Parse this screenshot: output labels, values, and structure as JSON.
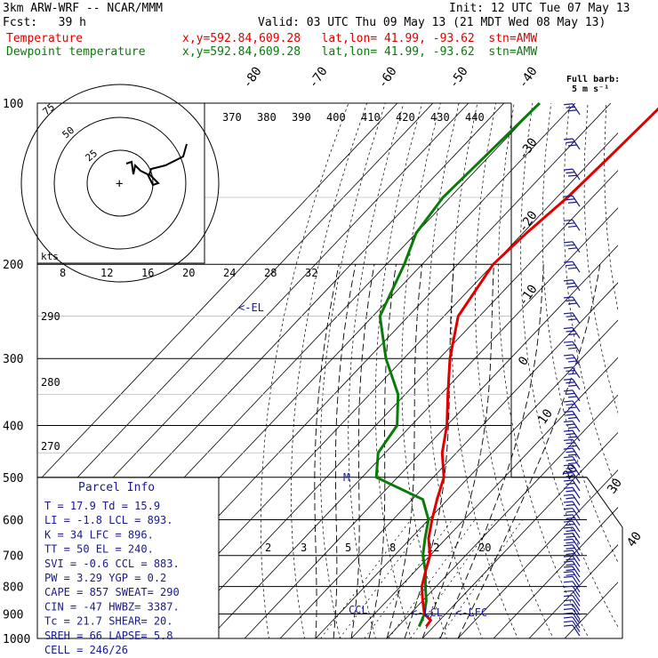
{
  "header": {
    "model": "3km ARW-WRF -- NCAR/MMM",
    "init": "Init: 12 UTC Tue 07 May 13",
    "fcst": "Fcst:   39 h",
    "valid": "Valid: 03 UTC Thu 09 May 13 (21 MDT Wed 08 May 13)",
    "temp_label": "Temperature",
    "temp_loc": "x,y=592.84,609.28   lat,lon= 41.99, -93.62  stn=AMW",
    "dew_label": "Dewpoint temperature",
    "dew_loc": "x,y=592.84,609.28   lat,lon= 41.99, -93.62  stn=AMW",
    "barb_key": "Full barb:",
    "barb_key2": "5 m s⁻¹"
  },
  "colors": {
    "temperature": "#e00000",
    "dewpoint": "#0a7a0a",
    "barbs": "#1a1a8c",
    "parcel_text": "#1a1a8c",
    "hodograph_text": "#1a1a8c"
  },
  "chart_data": {
    "type": "line",
    "subtype": "skew-T log-p sounding",
    "pressure_levels": [
      100,
      200,
      300,
      400,
      500,
      600,
      700,
      800,
      900,
      1000
    ],
    "temp_ticks": [
      "-80",
      "-70",
      "-60",
      "-50",
      "-40",
      "-30",
      "-20",
      "-10",
      "0",
      "10",
      "20",
      "30",
      "40"
    ],
    "theta_e_labels": [
      "370",
      "380",
      "390",
      "400",
      "410",
      "420",
      "430",
      "440"
    ],
    "hodo_speed_labels": [
      "8",
      "12",
      "16",
      "20",
      "24",
      "28",
      "32"
    ],
    "hodo_kts": "kts",
    "hodo_ring_labels": [
      "75",
      "50",
      "25"
    ],
    "left_labels": [
      "290",
      "280",
      "270"
    ],
    "mixing_ratio_labels": [
      "2",
      "3",
      "5",
      "8",
      "12",
      "20"
    ],
    "level_marks": [
      "<-EL",
      "CCL",
      "<-LCL",
      "<-LFC",
      "M"
    ],
    "temperature": [
      {
        "p": 100,
        "t": -55
      },
      {
        "p": 125,
        "t": -56
      },
      {
        "p": 150,
        "t": -57
      },
      {
        "p": 175,
        "t": -59
      },
      {
        "p": 200,
        "t": -60
      },
      {
        "p": 250,
        "t": -56
      },
      {
        "p": 300,
        "t": -47
      },
      {
        "p": 350,
        "t": -38
      },
      {
        "p": 400,
        "t": -30
      },
      {
        "p": 450,
        "t": -24
      },
      {
        "p": 500,
        "t": -17
      },
      {
        "p": 550,
        "t": -13
      },
      {
        "p": 600,
        "t": -9
      },
      {
        "p": 650,
        "t": -5
      },
      {
        "p": 700,
        "t": 0
      },
      {
        "p": 750,
        "t": 3
      },
      {
        "p": 800,
        "t": 6
      },
      {
        "p": 850,
        "t": 10
      },
      {
        "p": 900,
        "t": 14
      },
      {
        "p": 925,
        "t": 17.5
      },
      {
        "p": 950,
        "t": 17.9
      }
    ],
    "dewpoint": [
      {
        "p": 100,
        "t": -90
      },
      {
        "p": 150,
        "t": -92
      },
      {
        "p": 175,
        "t": -90
      },
      {
        "p": 200,
        "t": -85
      },
      {
        "p": 250,
        "t": -78
      },
      {
        "p": 300,
        "t": -65
      },
      {
        "p": 350,
        "t": -52
      },
      {
        "p": 400,
        "t": -44
      },
      {
        "p": 450,
        "t": -42
      },
      {
        "p": 500,
        "t": -36
      },
      {
        "p": 550,
        "t": -17
      },
      {
        "p": 600,
        "t": -10
      },
      {
        "p": 650,
        "t": -6
      },
      {
        "p": 700,
        "t": -2
      },
      {
        "p": 750,
        "t": 3
      },
      {
        "p": 800,
        "t": 7
      },
      {
        "p": 850,
        "t": 11
      },
      {
        "p": 900,
        "t": 14
      },
      {
        "p": 925,
        "t": 15
      },
      {
        "p": 950,
        "t": 15.9
      }
    ],
    "parcel_info": {
      "title": "Parcel Info",
      "rows": [
        "T  =     17.9  Td =  15.9",
        "LI =     -1.8  LCL =  893.",
        "K  =       34  LFC =  896.",
        "TT =       50  EL  =  240.",
        "SVI =    -0.6  CCL =  883.",
        "PW =     3.29  YGP =   0.2",
        "CAPE =    857  SWEAT=  290",
        "CIN =     -47  HWBZ= 3387.",
        "Tc =     21.7  SHEAR=  20.",
        "SREH =     66  LAPSE=  5.8",
        "CELL = 246/26"
      ]
    }
  }
}
